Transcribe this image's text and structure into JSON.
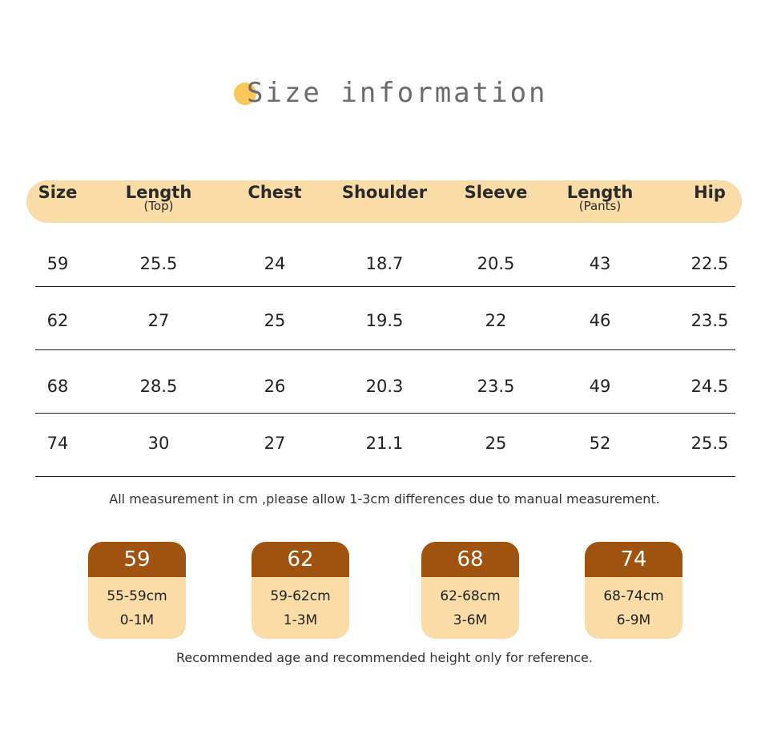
{
  "title": "Size information",
  "colors": {
    "header_band": "#f9dca6",
    "card_top": "#a0520f",
    "dot": "#fbc65a"
  },
  "table": {
    "headers": [
      {
        "label": "Size",
        "sub": ""
      },
      {
        "label": "Length",
        "sub": "(Top)"
      },
      {
        "label": "Chest",
        "sub": ""
      },
      {
        "label": "Shoulder",
        "sub": ""
      },
      {
        "label": "Sleeve",
        "sub": ""
      },
      {
        "label": "Length",
        "sub": "(Pants)"
      },
      {
        "label": "Hip",
        "sub": ""
      }
    ],
    "rows": [
      [
        "59",
        "25.5",
        "24",
        "18.7",
        "20.5",
        "43",
        "22.5"
      ],
      [
        "62",
        "27",
        "25",
        "19.5",
        "22",
        "46",
        "23.5"
      ],
      [
        "68",
        "28.5",
        "26",
        "20.3",
        "23.5",
        "49",
        "24.5"
      ],
      [
        "74",
        "30",
        "27",
        "21.1",
        "25",
        "52",
        "25.5"
      ]
    ]
  },
  "note": "All measurement in cm ,please allow 1-3cm differences due to manual measurement.",
  "cards": [
    {
      "size": "59",
      "height": "55-59cm",
      "age": "0-1M"
    },
    {
      "size": "62",
      "height": "59-62cm",
      "age": "1-3M"
    },
    {
      "size": "68",
      "height": "62-68cm",
      "age": "3-6M"
    },
    {
      "size": "74",
      "height": "68-74cm",
      "age": "6-9M"
    }
  ],
  "footer": "Recommended age and recommended height only for reference."
}
